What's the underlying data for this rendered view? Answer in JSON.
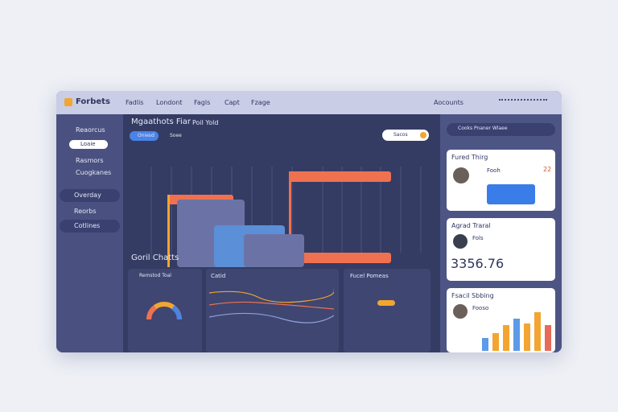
{
  "topbar": {
    "logo": "Forbets",
    "menu": [
      "Fadlis",
      "Londont",
      "Fagls",
      "Capt",
      "Fzage"
    ],
    "user": "Aocounts"
  },
  "sidebar": {
    "items": [
      "Reaorcus",
      "Rasmors",
      "Cuogkanes"
    ],
    "button": "Loaie",
    "nav": [
      "Overday",
      "Reorbs",
      "Cotlines"
    ]
  },
  "main": {
    "title": "Mgaathots Fiar",
    "crumb": "Poil Yold",
    "tabs": [
      "Oniesd",
      "Soee"
    ],
    "search": "Sacos",
    "section": "Goril Chatts",
    "cards": [
      "Remstod Toal",
      "Catid",
      "Fucel Pomeas"
    ]
  },
  "right": {
    "search": "Cooks Pnaner Wlaee",
    "cards": [
      {
        "title": "Fured Thirg",
        "name": "Fooh",
        "value": "22"
      },
      {
        "title": "Agrad Traral",
        "name": "Fols",
        "value": "3356.76"
      },
      {
        "title": "Fsacil Sbbing",
        "name": "Fooso"
      }
    ]
  }
}
